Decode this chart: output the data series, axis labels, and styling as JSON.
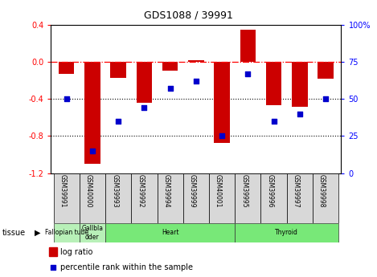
{
  "title": "GDS1088 / 39991",
  "samples": [
    "GSM39991",
    "GSM40000",
    "GSM39993",
    "GSM39992",
    "GSM39994",
    "GSM39999",
    "GSM40001",
    "GSM39995",
    "GSM39996",
    "GSM39997",
    "GSM39998"
  ],
  "log_ratio": [
    -0.13,
    -1.1,
    -0.17,
    -0.44,
    -0.09,
    0.02,
    -0.87,
    0.35,
    -0.47,
    -0.48,
    -0.18
  ],
  "percentile": [
    50,
    15,
    35,
    44,
    57,
    62,
    25,
    67,
    35,
    40,
    50
  ],
  "ylim_left": [
    -1.2,
    0.4
  ],
  "ylim_right": [
    0,
    100
  ],
  "yticks_left": [
    -1.2,
    -0.8,
    -0.4,
    0.0,
    0.4
  ],
  "yticks_right": [
    0,
    25,
    50,
    75,
    100
  ],
  "bar_color": "#cc0000",
  "dot_color": "#0000cc",
  "dotted_lines": [
    -0.4,
    -0.8
  ],
  "tissue_groups": [
    {
      "label": "Fallopian tube",
      "start": 0,
      "end": 1
    },
    {
      "label": "Gallbla\ndder",
      "start": 1,
      "end": 2
    },
    {
      "label": "Heart",
      "start": 2,
      "end": 7
    },
    {
      "label": "Thyroid",
      "start": 7,
      "end": 11
    }
  ],
  "tissue_color_light": "#b8f0b8",
  "tissue_color_main": "#78e878",
  "legend_bar_label": "log ratio",
  "legend_dot_label": "percentile rank within the sample",
  "sample_box_color": "#d8d8d8",
  "bg_color": "#ffffff"
}
